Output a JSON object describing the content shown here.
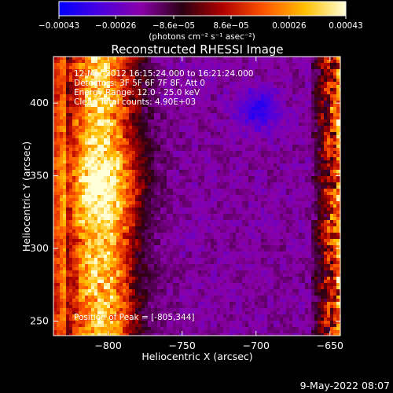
{
  "chart_data": {
    "type": "heatmap",
    "title": "Reconstructed RHESSI Image",
    "xlabel": "Heliocentric X (arcsec)",
    "ylabel": "Heliocentric Y (arcsec)",
    "xlim": [
      -837,
      -643
    ],
    "ylim": [
      240,
      432
    ],
    "xticks": [
      {
        "value": -800,
        "label": "−800"
      },
      {
        "value": -750,
        "label": "−750"
      },
      {
        "value": -700,
        "label": "−700"
      },
      {
        "value": -650,
        "label": "−650"
      }
    ],
    "yticks": [
      {
        "value": 250,
        "label": "250"
      },
      {
        "value": 300,
        "label": "300"
      },
      {
        "value": 350,
        "label": "350"
      },
      {
        "value": 400,
        "label": "400"
      }
    ],
    "colorbar": {
      "range": [
        -0.00043,
        0.00043
      ],
      "ticks": [
        {
          "value": -0.00043,
          "label": "−0.00043"
        },
        {
          "value": -0.00026,
          "label": "−0.00026"
        },
        {
          "value": -8.6e-05,
          "label": "−8.6e−05"
        },
        {
          "value": 8.6e-05,
          "label": "8.6e−05"
        },
        {
          "value": 0.00026,
          "label": "0.00026"
        },
        {
          "value": 0.00043,
          "label": "0.00043"
        }
      ],
      "unit_label": "(photons cm⁻² s⁻¹ asec⁻²)",
      "colors": [
        "#0000ff",
        "#4b00e0",
        "#8a00a8",
        "#2a0012",
        "#b00000",
        "#ff5500",
        "#ffc000",
        "#ffffd8"
      ]
    },
    "annotations": [
      "12-Mar-2012 16:15:24.000 to 16:21:24.000",
      "Detectors: 3F 5F 6F 7F 8F, Att 0",
      "Energy Range: 12.0 - 25.0 keV",
      "Clean  Total counts: 4.90E+03"
    ],
    "peak_text": "Position of Peak = [-805,344]",
    "peak": {
      "x": -805,
      "y": 344
    },
    "image_model": {
      "background_level": -0.00018,
      "bright_ridge_x_center": -806,
      "bright_ridge_half_width": 22,
      "right_edge_bright_from_x": -665,
      "blue_hole_center": {
        "x": -700,
        "y": 395
      }
    }
  },
  "timestamp": "9-May-2022 08:07"
}
